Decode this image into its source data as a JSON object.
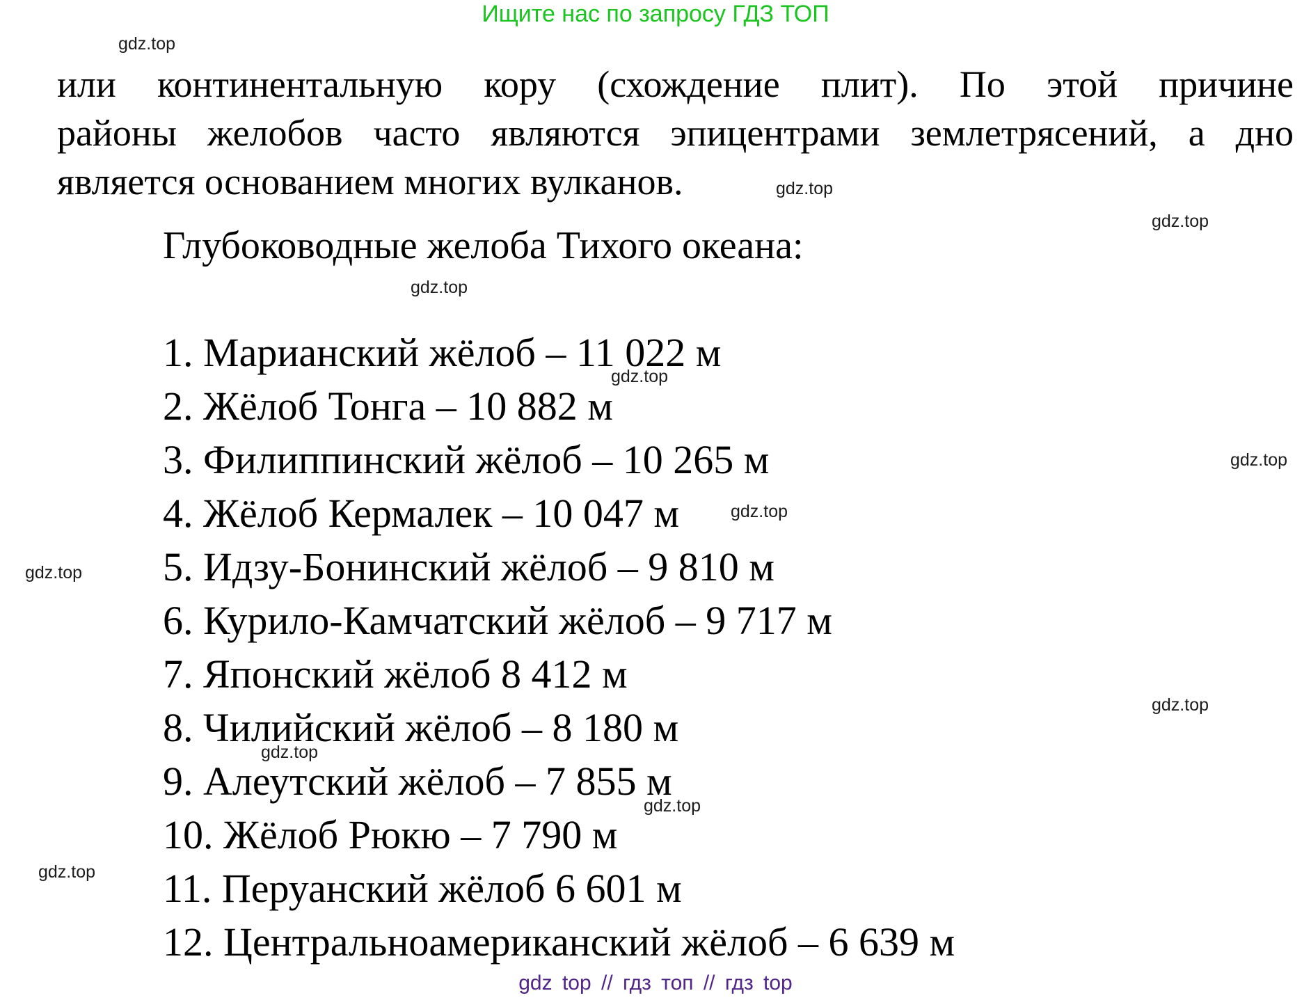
{
  "watermark_text": "gdz.top",
  "header": {
    "promo_text": "Ищите нас по запросу ГДЗ ТОП",
    "promo_color": "#1bc421"
  },
  "paragraph": {
    "lines": [
      "или континентальную кору (схождение плит). По этой причине",
      "районы желобов часто являются эпицентрами землетрясений, а дно",
      "является основанием многих вулканов."
    ]
  },
  "heading": "Глубоководные желоба Тихого океана:",
  "list": {
    "items": [
      {
        "line": "1. Марианский жёлоб – 11 022 м",
        "name": "Марианский жёлоб",
        "depth_m": 11022
      },
      {
        "line": "2. Жёлоб Тонга – 10 882 м",
        "name": "Жёлоб Тонга",
        "depth_m": 10882
      },
      {
        "line": "3. Филиппинский жёлоб – 10 265 м",
        "name": "Филиппинский жёлоб",
        "depth_m": 10265
      },
      {
        "line": "4. Жёлоб Кермалек – 10 047 м",
        "name": "Жёлоб Кермалек",
        "depth_m": 10047
      },
      {
        "line": "5. Идзу-Бонинский жёлоб – 9 810 м",
        "name": "Идзу-Бонинский жёлоб",
        "depth_m": 9810
      },
      {
        "line": "6. Курило-Камчатский жёлоб – 9 717 м",
        "name": "Курило-Камчатский жёлоб",
        "depth_m": 9717
      },
      {
        "line": "7. Японский жёлоб 8 412 м",
        "name": "Японский жёлоб",
        "depth_m": 8412
      },
      {
        "line": "8. Чилийский жёлоб – 8 180 м",
        "name": "Чилийский жёлоб",
        "depth_m": 8180
      },
      {
        "line": "9. Алеутский жёлоб – 7 855 м",
        "name": "Алеутский жёлоб",
        "depth_m": 7855
      },
      {
        "line": "10. Жёлоб Рюкю – 7 790 м",
        "name": "Жёлоб Рюкю",
        "depth_m": 7790
      },
      {
        "line": "11. Перуанский жёлоб 6 601 м",
        "name": "Перуанский жёлоб",
        "depth_m": 6601
      },
      {
        "line": "12. Центральноамериканский жёлоб – 6 639 м",
        "name": "Центральноамериканский жёлоб",
        "depth_m": 6639
      }
    ]
  },
  "footer": {
    "text": "gdz top  //  гдз топ  //  гдз top",
    "color": "#522589"
  }
}
